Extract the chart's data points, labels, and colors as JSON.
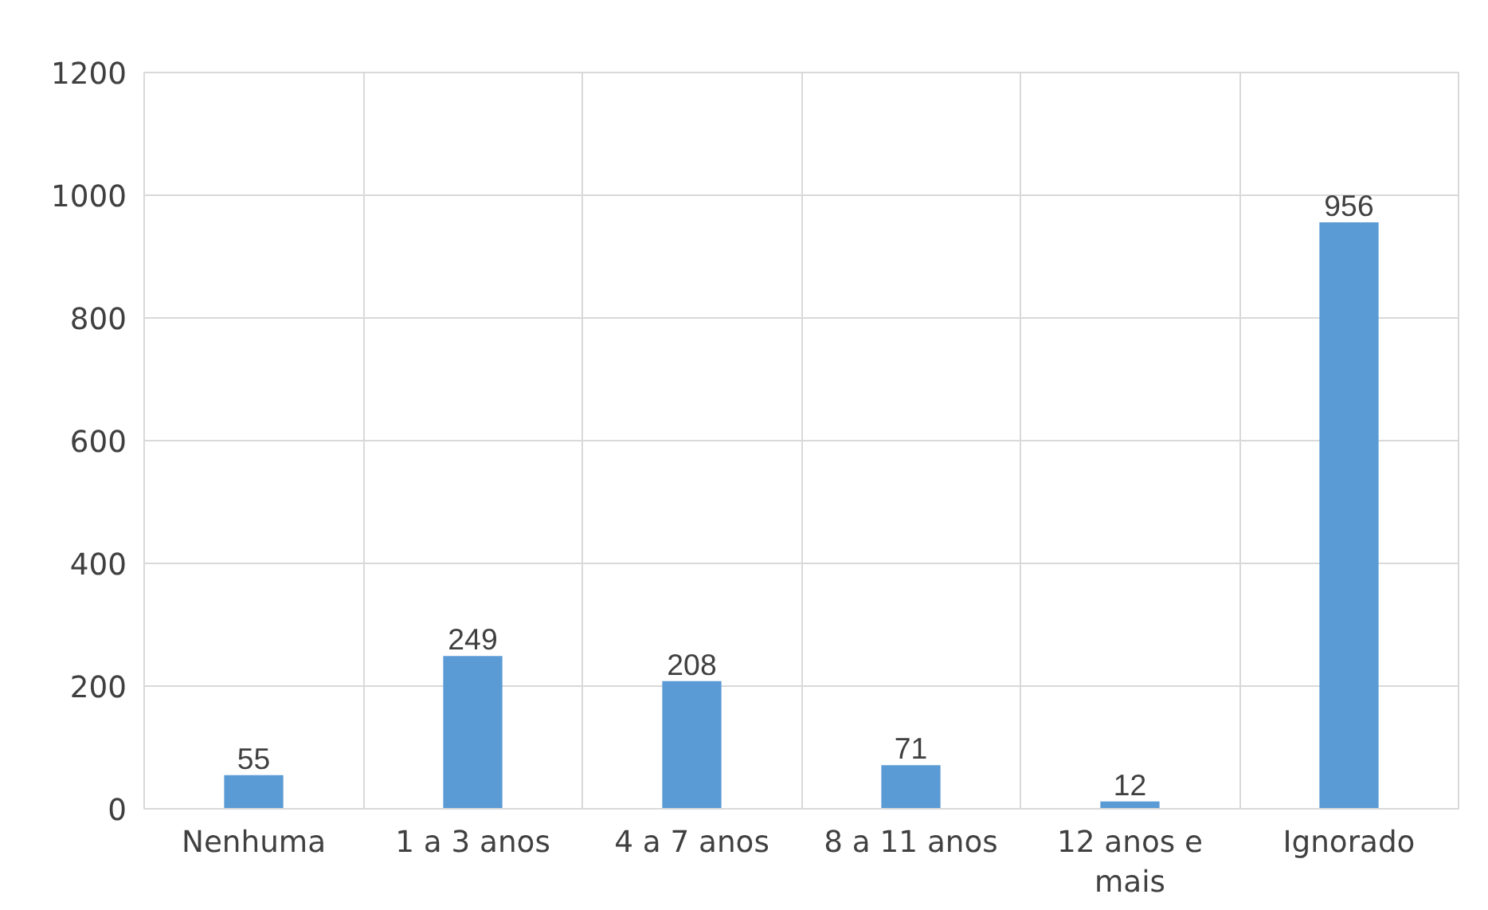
{
  "chart_data": {
    "type": "bar",
    "categories": [
      "Nenhuma",
      "1 a 3 anos",
      "4 a 7 anos",
      "8 a 11 anos",
      "12 anos e mais",
      "Ignorado"
    ],
    "values": [
      55,
      249,
      208,
      71,
      12,
      956
    ],
    "color": "#5b9bd5",
    "ylim": [
      0,
      1200
    ],
    "yticks": [
      0,
      200,
      400,
      600,
      800,
      1000,
      1200
    ],
    "grid": true,
    "data_labels": true
  }
}
